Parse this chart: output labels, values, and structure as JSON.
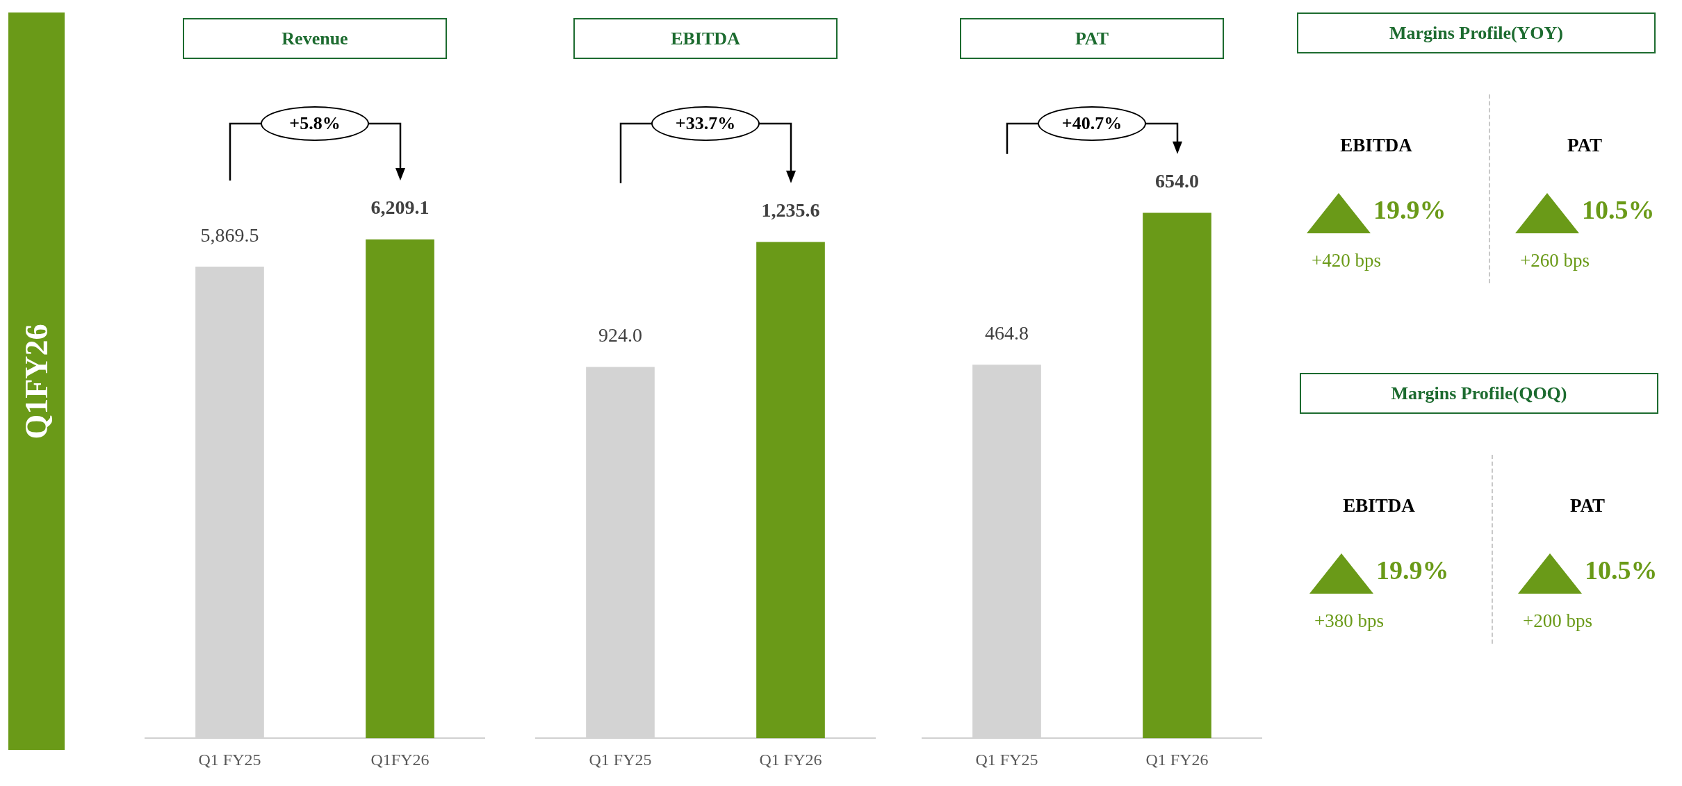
{
  "chart_data": [
    {
      "type": "other",
      "title": "Q1FY26"
    },
    {
      "type": "bar",
      "title": "Revenue",
      "categories": [
        "Q1 FY25",
        "Q1FY26"
      ],
      "values": [
        5869.5,
        6209.1
      ],
      "colors": [
        "#d3d3d3",
        "#6a9a18"
      ],
      "value_labels": [
        "5,869.5",
        "6,209.1"
      ],
      "annotations": [
        "+5.8%"
      ]
    },
    {
      "type": "bar",
      "title": "EBITDA",
      "categories": [
        "Q1 FY25",
        "Q1 FY26"
      ],
      "values": [
        924.0,
        1235.6
      ],
      "colors": [
        "#d3d3d3",
        "#6a9a18"
      ],
      "value_labels": [
        "924.0",
        "1,235.6"
      ],
      "annotations": [
        "+33.7%"
      ]
    },
    {
      "type": "bar",
      "title": "PAT",
      "categories": [
        "Q1 FY25",
        "Q1 FY26"
      ],
      "values": [
        464.8,
        654.0
      ],
      "colors": [
        "#d3d3d3",
        "#6a9a18"
      ],
      "value_labels": [
        "464.8",
        "654.0"
      ],
      "annotations": [
        "+40.7%"
      ]
    },
    {
      "type": "other",
      "title": "Margins Profile(YOY)",
      "annotations": [
        "EBITDA",
        "19.9%",
        "+420 bps",
        "PAT",
        "10.5%",
        "+260 bps"
      ]
    },
    {
      "type": "other",
      "title": "Margins Profile(QOQ)",
      "annotations": [
        "EBITDA",
        "19.9%",
        "+380 bps",
        "PAT",
        "10.5%",
        "+200 bps"
      ]
    }
  ]
}
